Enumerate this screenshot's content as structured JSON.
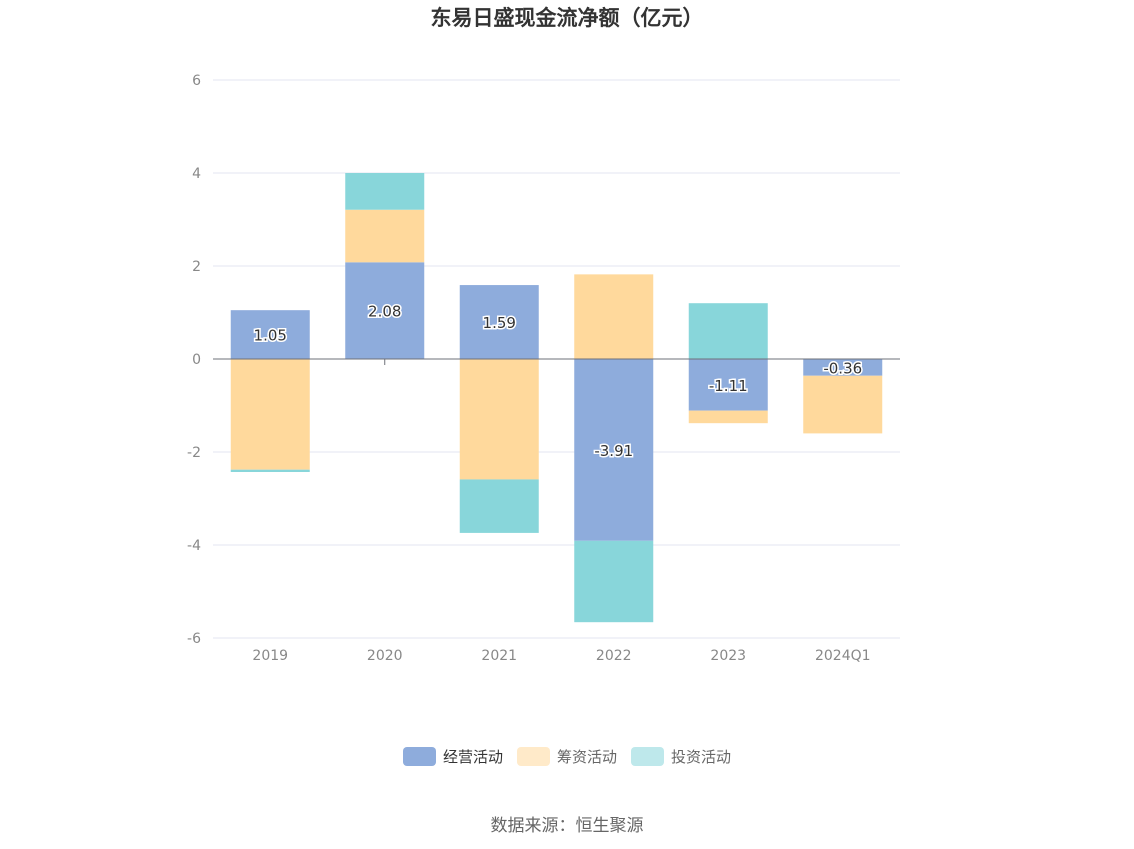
{
  "chart_data": {
    "type": "bar",
    "stacked": true,
    "title": "东易日盛现金流净额（亿元）",
    "xlabel": "",
    "ylabel": "",
    "categories": [
      "2019",
      "2020",
      "2021",
      "2022",
      "2023",
      "2024Q1"
    ],
    "ylim": [
      -6,
      6
    ],
    "yticks": [
      6,
      4,
      2,
      0,
      -2,
      -4,
      -6
    ],
    "grid": true,
    "legend_position": "bottom-center",
    "series": [
      {
        "name": "经营活动",
        "color": "#8EACDC",
        "values": [
          1.05,
          2.08,
          1.59,
          -3.91,
          -1.11,
          -0.36
        ],
        "labels": [
          "1.05",
          "2.08",
          "1.59",
          "-3.91",
          "-1.11",
          "-0.36"
        ]
      },
      {
        "name": "筹资活动",
        "color": "#FFD99C",
        "values": [
          -2.38,
          1.13,
          -2.59,
          1.82,
          -0.27,
          -1.24
        ]
      },
      {
        "name": "投资活动",
        "color": "#88D6DA",
        "values": [
          -0.05,
          0.79,
          -1.15,
          -1.75,
          1.2,
          0.0
        ]
      }
    ]
  },
  "source_text": "数据来源：恒生聚源"
}
